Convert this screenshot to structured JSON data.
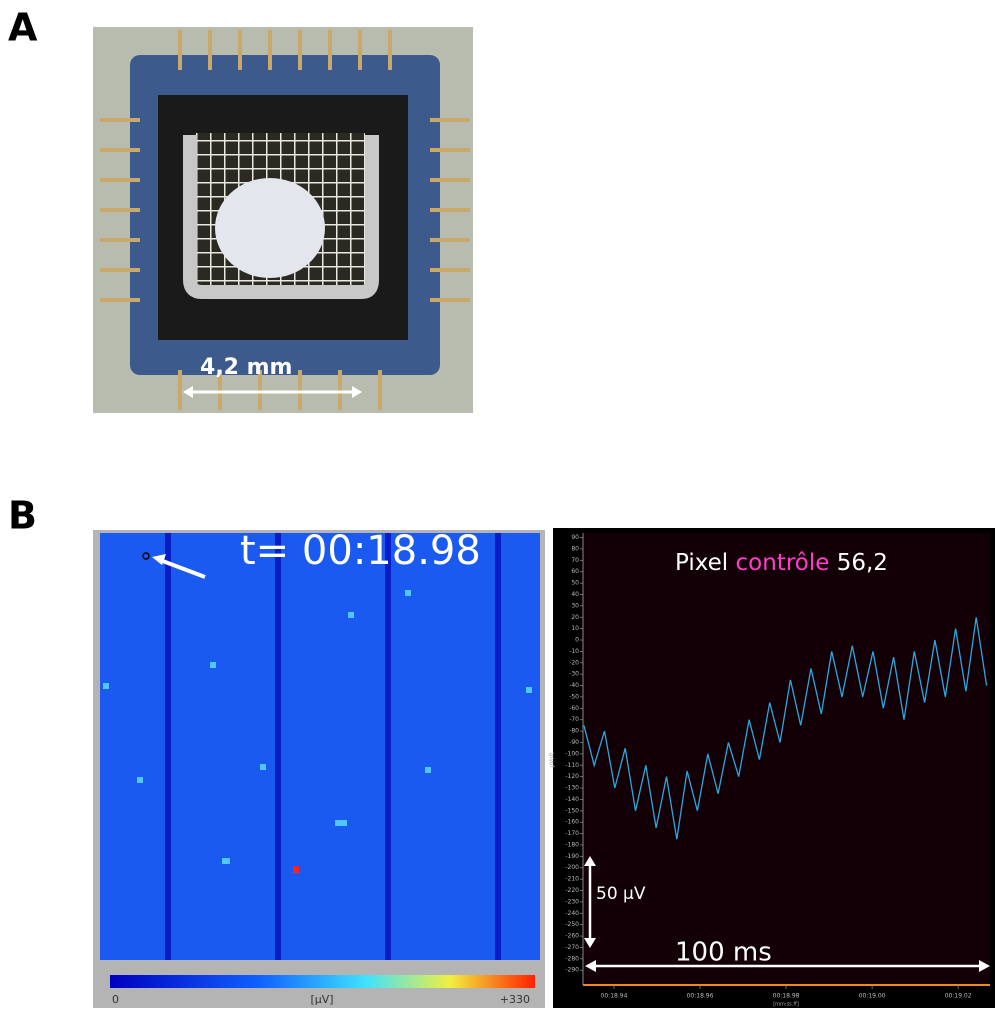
{
  "panel_a": {
    "label": "A",
    "scale_bar": "4,2 mm"
  },
  "panel_b": {
    "label": "B",
    "time_label": "t= 00:18.98",
    "colorbar": {
      "min": "0",
      "unit": "[µV]",
      "max": "+330"
    }
  },
  "chart_data": {
    "type": "line",
    "title_parts": [
      "Pixel",
      "contrôle",
      "56,2"
    ],
    "y_label": "µVolt",
    "x_label": "[mm:ss.ff]",
    "y_scale_bar": "50 µV",
    "x_scale_bar": "100 ms",
    "color": "#29a8e0",
    "xlim": [
      18.9328,
      19.0274
    ],
    "ylim": [
      -303,
      94
    ],
    "xticks": [
      {
        "value": 18.94,
        "label": "00:18.94"
      },
      {
        "value": 18.96,
        "label": "00:18.96"
      },
      {
        "value": 18.98,
        "label": "00:18.98"
      },
      {
        "value": 19.0,
        "label": "00:19.00"
      },
      {
        "value": 19.02,
        "label": "00:19.02"
      }
    ],
    "yticks": [
      90,
      80,
      70,
      60,
      50,
      40,
      30,
      20,
      10,
      0,
      -10,
      -20,
      -30,
      -40,
      -50,
      -60,
      -70,
      -80,
      -90,
      -100,
      -110,
      -120,
      -130,
      -140,
      -150,
      -160,
      -170,
      -180,
      -190,
      -200,
      -210,
      -220,
      -230,
      -240,
      -250,
      -260,
      -270,
      -280,
      -290
    ],
    "x": [
      18.933,
      18.9354,
      18.9378,
      18.9402,
      18.9426,
      18.945,
      18.9474,
      18.9498,
      18.9522,
      18.9546,
      18.957,
      18.9594,
      18.9618,
      18.9642,
      18.9666,
      18.969,
      18.9714,
      18.9738,
      18.9762,
      18.9786,
      18.981,
      18.9834,
      18.9858,
      18.9882,
      18.9906,
      18.993,
      18.9954,
      18.9978,
      19.0002,
      19.0026,
      19.005,
      19.0074,
      19.0098,
      19.0122,
      19.0146,
      19.017,
      19.0194,
      19.0218,
      19.0242,
      19.0266
    ],
    "values": [
      -75,
      -110,
      -80,
      -130,
      -95,
      -150,
      -110,
      -165,
      -120,
      -175,
      -115,
      -150,
      -100,
      -135,
      -90,
      -120,
      -70,
      -105,
      -55,
      -90,
      -35,
      -75,
      -25,
      -65,
      -10,
      -50,
      -5,
      -50,
      -10,
      -60,
      -15,
      -70,
      -10,
      -55,
      0,
      -50,
      10,
      -45,
      20,
      -40
    ]
  }
}
